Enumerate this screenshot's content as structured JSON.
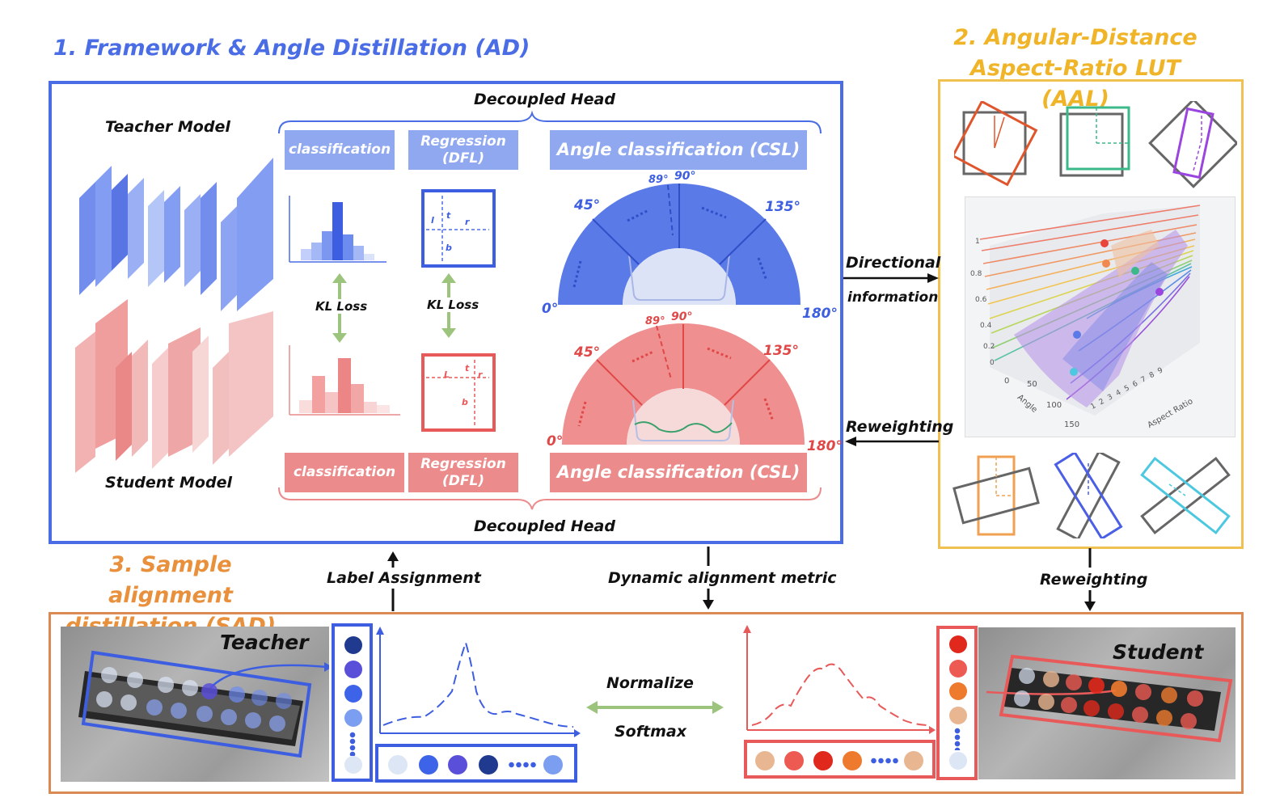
{
  "sections": {
    "ad_title": "1. Framework & Angle Distillation (AD)",
    "aal_title_line1": "2. Angular-Distance",
    "aal_title_line2": "Aspect-Ratio LUT (AAL)",
    "sad_title_line1": "3. Sample alignment",
    "sad_title_line2": "distillation (SAD)"
  },
  "framework": {
    "teacher_model": "Teacher Model",
    "student_model": "Student Model",
    "decoupled_head_top": "Decoupled Head",
    "decoupled_head_bottom": "Decoupled Head",
    "teacher_heads": {
      "classification": "classification",
      "regression_line1": "Regression",
      "regression_line2": "(DFL)",
      "angle": "Angle classification (CSL)"
    },
    "student_heads": {
      "classification": "classification",
      "regression_line1": "Regression",
      "regression_line2": "(DFL)",
      "angle": "Angle classification (CSL)"
    },
    "kl_loss_1": "KL Loss",
    "kl_loss_2": "KL Loss",
    "teacher_box_labels": {
      "t": "t",
      "l": "l",
      "r": "r",
      "b": "b"
    },
    "student_box_labels": {
      "t": "t",
      "l": "L",
      "r": "r",
      "b": "b"
    },
    "teacher_angles": {
      "a0": "0°",
      "a45": "45°",
      "a89": "89°",
      "a90": "90°",
      "a135": "135°",
      "a180": "180°"
    },
    "student_angles": {
      "a0": "0°",
      "a45": "45°",
      "a89": "89°",
      "a90": "90°",
      "a135": "135°",
      "a180": "180°"
    }
  },
  "arrows": {
    "directional_line1": "Directional",
    "directional_line2": "information",
    "reweighting_1": "Reweighting",
    "reweighting_2": "Reweighting",
    "label_assignment": "Label Assignment",
    "dynamic_alignment": "Dynamic alignment metric",
    "normalize": "Normalize",
    "softmax": "Softmax"
  },
  "plot3d": {
    "z_ticks": [
      "1",
      "0.8",
      "0.6",
      "0.4",
      "0.2",
      "0"
    ],
    "angle_ticks": [
      "0",
      "50",
      "100",
      "150"
    ],
    "angle_label": "Angle",
    "ar_ticks": [
      "1",
      "2",
      "3",
      "4",
      "5",
      "6",
      "7",
      "8",
      "9"
    ],
    "ar_label": "Aspect Ratio"
  },
  "sad": {
    "teacher": "Teacher",
    "student": "Student",
    "teacher_column_colors": [
      "#1f3a8f",
      "#5a4fd8",
      "#3d63e8",
      "#7c9ef0",
      "#dce6f5"
    ],
    "teacher_row_colors": [
      "#dce6f5",
      "#3d63e8",
      "#5a4fd8",
      "#1f3a8f",
      "#7c9ef0"
    ],
    "student_column_colors": [
      "#e0281c",
      "#ec5a52",
      "#ee7a2e",
      "#e8b690",
      "#dce6f5"
    ],
    "student_row_colors": [
      "#e8b690",
      "#ec5a52",
      "#e0281c",
      "#ee7a2e",
      "#e8b690"
    ]
  },
  "colors": {
    "blue": "#4a6de6",
    "red": "#e85a5a",
    "orange": "#e8903c",
    "gold": "#f0b429",
    "green": "#9cc47c"
  }
}
